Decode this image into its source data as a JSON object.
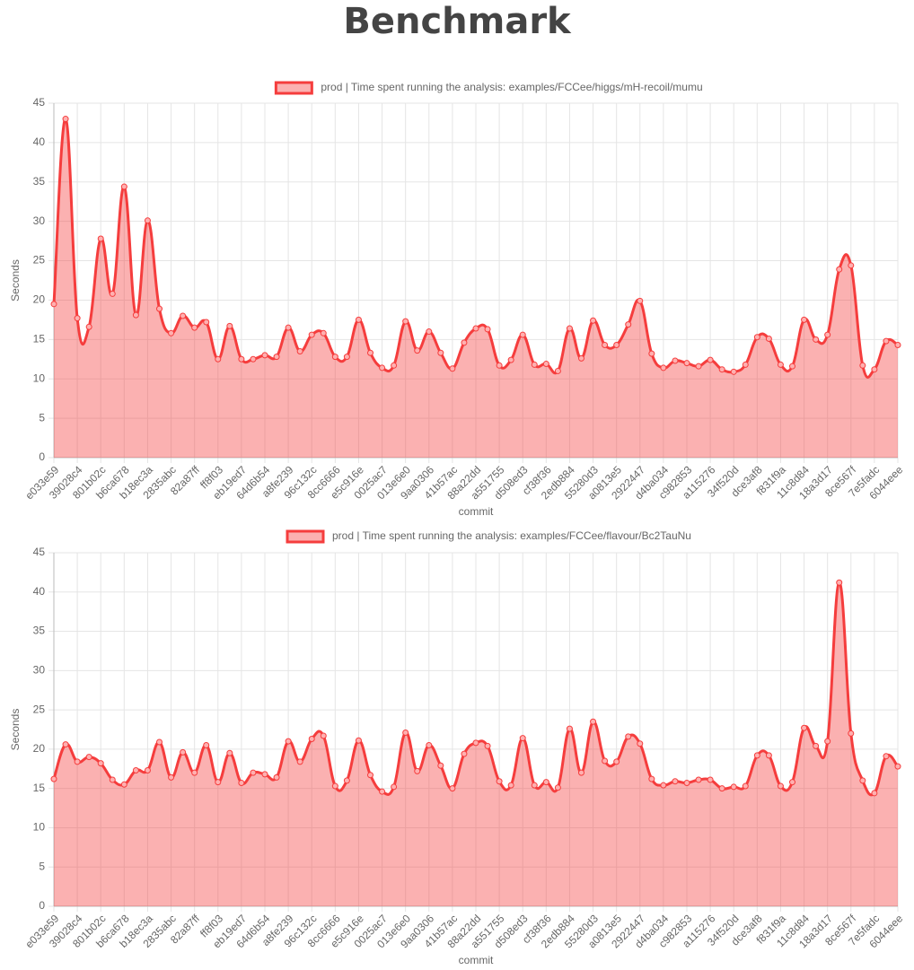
{
  "title": "Benchmark",
  "chart_data": [
    {
      "type": "line",
      "x_label": "commit",
      "y_label": "Seconds",
      "categories": [
        "e033e59",
        null,
        "39028c4",
        null,
        "801b02c",
        null,
        "b6ca678",
        null,
        "b18ec3a",
        null,
        "2835abc",
        null,
        "82a87ff",
        null,
        "ff8f03",
        null,
        "eb19ed7",
        null,
        "64d6b54",
        null,
        "a8fe239",
        null,
        "96c132c",
        null,
        "8cc6666",
        null,
        "e5c916e",
        null,
        "0025ac7",
        null,
        "013e6e0",
        null,
        "9aa0306",
        null,
        "41b57ac",
        null,
        "88a22dd",
        null,
        "a551755",
        null,
        "d508ed3",
        null,
        "cf38f36",
        null,
        "2edb884",
        null,
        "55280d3",
        null,
        "a0813e5",
        null,
        "2922447",
        null,
        "d4ba034",
        null,
        "c982853",
        null,
        "a115276",
        null,
        "34f520d",
        null,
        "dce3af8",
        null,
        "f831f9a",
        null,
        "11c8d84",
        null,
        "18a3d17",
        null,
        "8ce567f",
        null,
        "7e5fadc",
        null,
        "6044eee"
      ],
      "series": [
        {
          "name": "prod | Time spent running the analysis: examples/FCCee/higgs/mH-recoil/mumu",
          "color": "#f53d3d",
          "values": [
            19.5,
            43,
            17.7,
            16.6,
            27.8,
            20.8,
            34.4,
            18.1,
            30.1,
            18.9,
            15.8,
            18,
            16.5,
            17.2,
            12.5,
            16.7,
            12.5,
            12.5,
            13,
            12.8,
            16.5,
            13.5,
            15.6,
            15.8,
            12.8,
            12.8,
            17.5,
            13.3,
            11.4,
            11.7,
            17.3,
            13.6,
            16,
            13.3,
            11.3,
            14.6,
            16.4,
            16.3,
            11.7,
            12.4,
            15.6,
            11.8,
            11.9,
            11,
            16.4,
            12.6,
            17.4,
            14.3,
            14.3,
            16.9,
            19.9,
            13.2,
            11.4,
            12.3,
            12,
            11.6,
            12.4,
            11.2,
            10.9,
            11.8,
            15.3,
            15.1,
            11.8,
            11.6,
            17.5,
            15,
            15.6,
            23.9,
            24.4,
            11.7,
            11.2,
            14.8,
            14.3
          ]
        }
      ],
      "ylim": [
        0,
        45
      ],
      "yticks": [
        0,
        5,
        10,
        15,
        20,
        25,
        30,
        35,
        40,
        45
      ],
      "grid": true,
      "legend": "top"
    },
    {
      "type": "line",
      "x_label": "commit",
      "y_label": "Seconds",
      "categories": [
        "e033e59",
        null,
        "39028c4",
        null,
        "801b02c",
        null,
        "b6ca678",
        null,
        "b18ec3a",
        null,
        "2835abc",
        null,
        "82a87ff",
        null,
        "ff8f03",
        null,
        "eb19ed7",
        null,
        "64d6b54",
        null,
        "a8fe239",
        null,
        "96c132c",
        null,
        "8cc6666",
        null,
        "e5c916e",
        null,
        "0025ac7",
        null,
        "013e6e0",
        null,
        "9aa0306",
        null,
        "41b57ac",
        null,
        "88a22dd",
        null,
        "a551755",
        null,
        "d508ed3",
        null,
        "cf38f36",
        null,
        "2edb884",
        null,
        "55280d3",
        null,
        "a0813e5",
        null,
        "2922447",
        null,
        "d4ba034",
        null,
        "c982853",
        null,
        "a115276",
        null,
        "34f520d",
        null,
        "dce3af8",
        null,
        "f831f9a",
        null,
        "11c8d84",
        null,
        "18a3d17",
        null,
        "8ce567f",
        null,
        "7e5fadc",
        null,
        "6044eee"
      ],
      "series": [
        {
          "name": "prod | Time spent running the analysis: examples/FCCee/flavour/Bc2TauNu",
          "color": "#f53d3d",
          "values": [
            16.2,
            20.6,
            18.4,
            19,
            18.2,
            16.1,
            15.5,
            17.3,
            17.3,
            20.9,
            16.4,
            19.6,
            17,
            20.5,
            15.8,
            19.5,
            15.7,
            17,
            16.8,
            16.4,
            21,
            18.4,
            21.3,
            21.7,
            15.3,
            16,
            21.1,
            16.7,
            14.6,
            15.2,
            22.1,
            17.2,
            20.5,
            17.9,
            15,
            19.4,
            20.8,
            20.4,
            15.9,
            15.4,
            21.4,
            15.4,
            15.8,
            15.1,
            22.6,
            17,
            23.5,
            18.5,
            18.4,
            21.6,
            20.7,
            16.2,
            15.4,
            15.9,
            15.7,
            16.1,
            16.1,
            15,
            15.2,
            15.3,
            19.2,
            19.2,
            15.3,
            15.8,
            22.7,
            20.4,
            21,
            41.2,
            22,
            16,
            14.4,
            19.1,
            17.8
          ]
        }
      ],
      "ylim": [
        0,
        45
      ],
      "yticks": [
        0,
        5,
        10,
        15,
        20,
        25,
        30,
        35,
        40,
        45
      ],
      "grid": true,
      "legend": "top"
    }
  ]
}
